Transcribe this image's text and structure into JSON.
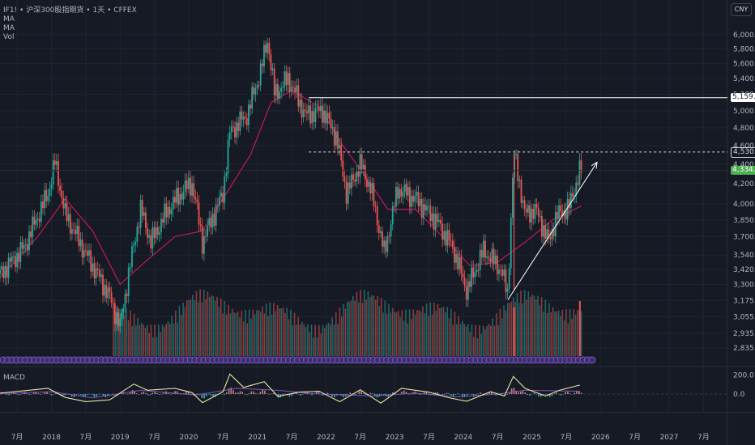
{
  "header": {
    "symbol": "IF1!",
    "title": "沪深300股指期货",
    "interval": "1天",
    "exchange": "CFFEX",
    "separator": "•",
    "indicators": [
      "MA",
      "MA",
      "Vol"
    ],
    "currency_button": "CNY"
  },
  "macd_label": "MACD",
  "price_tags": {
    "resistance": "5,159.0",
    "recent_high": "4,530.4",
    "last": "4,334.2"
  },
  "colors": {
    "bg": "#161a25",
    "up": "#26a69a",
    "down": "#ef5350",
    "ma": "#c2185b",
    "macd": "#e8e6a0",
    "signal": "#7e57c2",
    "last_tag": "#4caf50"
  },
  "chart_data": [
    {
      "type": "candlestick",
      "title": "沪深300股指期货",
      "x_ticks": [
        "7月",
        "2018",
        "7月",
        "2019",
        "7月",
        "2020",
        "7月",
        "2021",
        "7月",
        "2022",
        "7月",
        "2023",
        "7月",
        "2024",
        "7月",
        "2025",
        "7月",
        "2026",
        "7月",
        "2027",
        "7月"
      ],
      "y_ticks": [
        "6,000.0",
        "5,800.0",
        "5,600.0",
        "5,400.0",
        "5,200.0",
        "5,000.0",
        "4,800.0",
        "4,600.0",
        "4,400.0",
        "4,200.0",
        "4,000.0",
        "3,850.0",
        "3,700.0",
        "3,540.0",
        "3,420.0",
        "3,300.0",
        "3,175.0",
        "3,055.0",
        "2,935.0",
        "2,835.0"
      ],
      "y_scale": "log",
      "ylim": [
        2780,
        6150
      ],
      "price_path": [
        [
          2017.25,
          3380
        ],
        [
          2017.6,
          3600
        ],
        [
          2017.95,
          4100
        ],
        [
          2018.05,
          4420
        ],
        [
          2018.2,
          3900
        ],
        [
          2018.5,
          3550
        ],
        [
          2018.85,
          3200
        ],
        [
          2019.0,
          2980
        ],
        [
          2019.3,
          3950
        ],
        [
          2019.45,
          3650
        ],
        [
          2019.7,
          3950
        ],
        [
          2019.95,
          4150
        ],
        [
          2020.05,
          4200
        ],
        [
          2020.2,
          3650
        ],
        [
          2020.5,
          4100
        ],
        [
          2020.6,
          4750
        ],
        [
          2020.85,
          4950
        ],
        [
          2021.05,
          5500
        ],
        [
          2021.15,
          5930
        ],
        [
          2021.25,
          5200
        ],
        [
          2021.45,
          5400
        ],
        [
          2021.7,
          4950
        ],
        [
          2021.95,
          5000
        ],
        [
          2022.15,
          4700
        ],
        [
          2022.3,
          4100
        ],
        [
          2022.5,
          4400
        ],
        [
          2022.65,
          4150
        ],
        [
          2022.85,
          3550
        ],
        [
          2023.05,
          4150
        ],
        [
          2023.3,
          4050
        ],
        [
          2023.6,
          3850
        ],
        [
          2023.85,
          3600
        ],
        [
          2024.05,
          3250
        ],
        [
          2024.3,
          3580
        ],
        [
          2024.55,
          3420
        ],
        [
          2024.65,
          3220
        ],
        [
          2024.74,
          4520
        ],
        [
          2024.9,
          3900
        ],
        [
          2025.05,
          3950
        ],
        [
          2025.25,
          3650
        ],
        [
          2025.35,
          3880
        ],
        [
          2025.55,
          3980
        ],
        [
          2025.7,
          4334
        ]
      ],
      "ma_path": [
        [
          2017.25,
          3350
        ],
        [
          2017.8,
          3700
        ],
        [
          2018.2,
          4050
        ],
        [
          2018.6,
          3750
        ],
        [
          2019.0,
          3300
        ],
        [
          2019.4,
          3500
        ],
        [
          2019.8,
          3700
        ],
        [
          2020.2,
          3750
        ],
        [
          2020.5,
          4050
        ],
        [
          2020.9,
          4500
        ],
        [
          2021.2,
          5100
        ],
        [
          2021.5,
          5250
        ],
        [
          2021.9,
          5050
        ],
        [
          2022.2,
          4650
        ],
        [
          2022.6,
          4250
        ],
        [
          2022.9,
          3950
        ],
        [
          2023.3,
          3950
        ],
        [
          2023.7,
          3700
        ],
        [
          2024.1,
          3450
        ],
        [
          2024.5,
          3480
        ],
        [
          2024.9,
          3650
        ],
        [
          2025.3,
          3850
        ],
        [
          2025.72,
          3980
        ]
      ],
      "volume_waves": 6,
      "resistance": 5159.0,
      "recent_high": 4530.4,
      "last": 4334.2,
      "trend_arrow": [
        [
          2024.65,
          3180
        ],
        [
          2025.95,
          4420
        ]
      ]
    },
    {
      "type": "line",
      "title": "MACD",
      "y_ticks": [
        "200.0",
        "0.0"
      ],
      "ylim": [
        -110,
        230
      ],
      "macd": [
        [
          2017.25,
          10
        ],
        [
          2017.6,
          35
        ],
        [
          2017.95,
          60
        ],
        [
          2018.2,
          -35
        ],
        [
          2018.5,
          -80
        ],
        [
          2018.85,
          -60
        ],
        [
          2019.2,
          105
        ],
        [
          2019.4,
          40
        ],
        [
          2019.8,
          60
        ],
        [
          2020.05,
          15
        ],
        [
          2020.2,
          -90
        ],
        [
          2020.5,
          25
        ],
        [
          2020.6,
          210
        ],
        [
          2020.8,
          70
        ],
        [
          2021.1,
          130
        ],
        [
          2021.3,
          -25
        ],
        [
          2021.6,
          20
        ],
        [
          2021.9,
          30
        ],
        [
          2022.2,
          -80
        ],
        [
          2022.5,
          45
        ],
        [
          2022.8,
          -95
        ],
        [
          2023.1,
          60
        ],
        [
          2023.5,
          20
        ],
        [
          2023.8,
          -40
        ],
        [
          2024.05,
          -75
        ],
        [
          2024.4,
          25
        ],
        [
          2024.6,
          -20
        ],
        [
          2024.73,
          185
        ],
        [
          2024.9,
          60
        ],
        [
          2025.2,
          -20
        ],
        [
          2025.4,
          40
        ],
        [
          2025.7,
          95
        ]
      ],
      "signal": [
        [
          2017.25,
          5
        ],
        [
          2018.0,
          25
        ],
        [
          2018.6,
          -40
        ],
        [
          2019.3,
          40
        ],
        [
          2020.1,
          -10
        ],
        [
          2020.7,
          60
        ],
        [
          2021.3,
          40
        ],
        [
          2021.9,
          0
        ],
        [
          2022.7,
          -20
        ],
        [
          2023.3,
          10
        ],
        [
          2023.9,
          -30
        ],
        [
          2024.5,
          0
        ],
        [
          2024.9,
          40
        ],
        [
          2025.7,
          30
        ]
      ]
    }
  ]
}
